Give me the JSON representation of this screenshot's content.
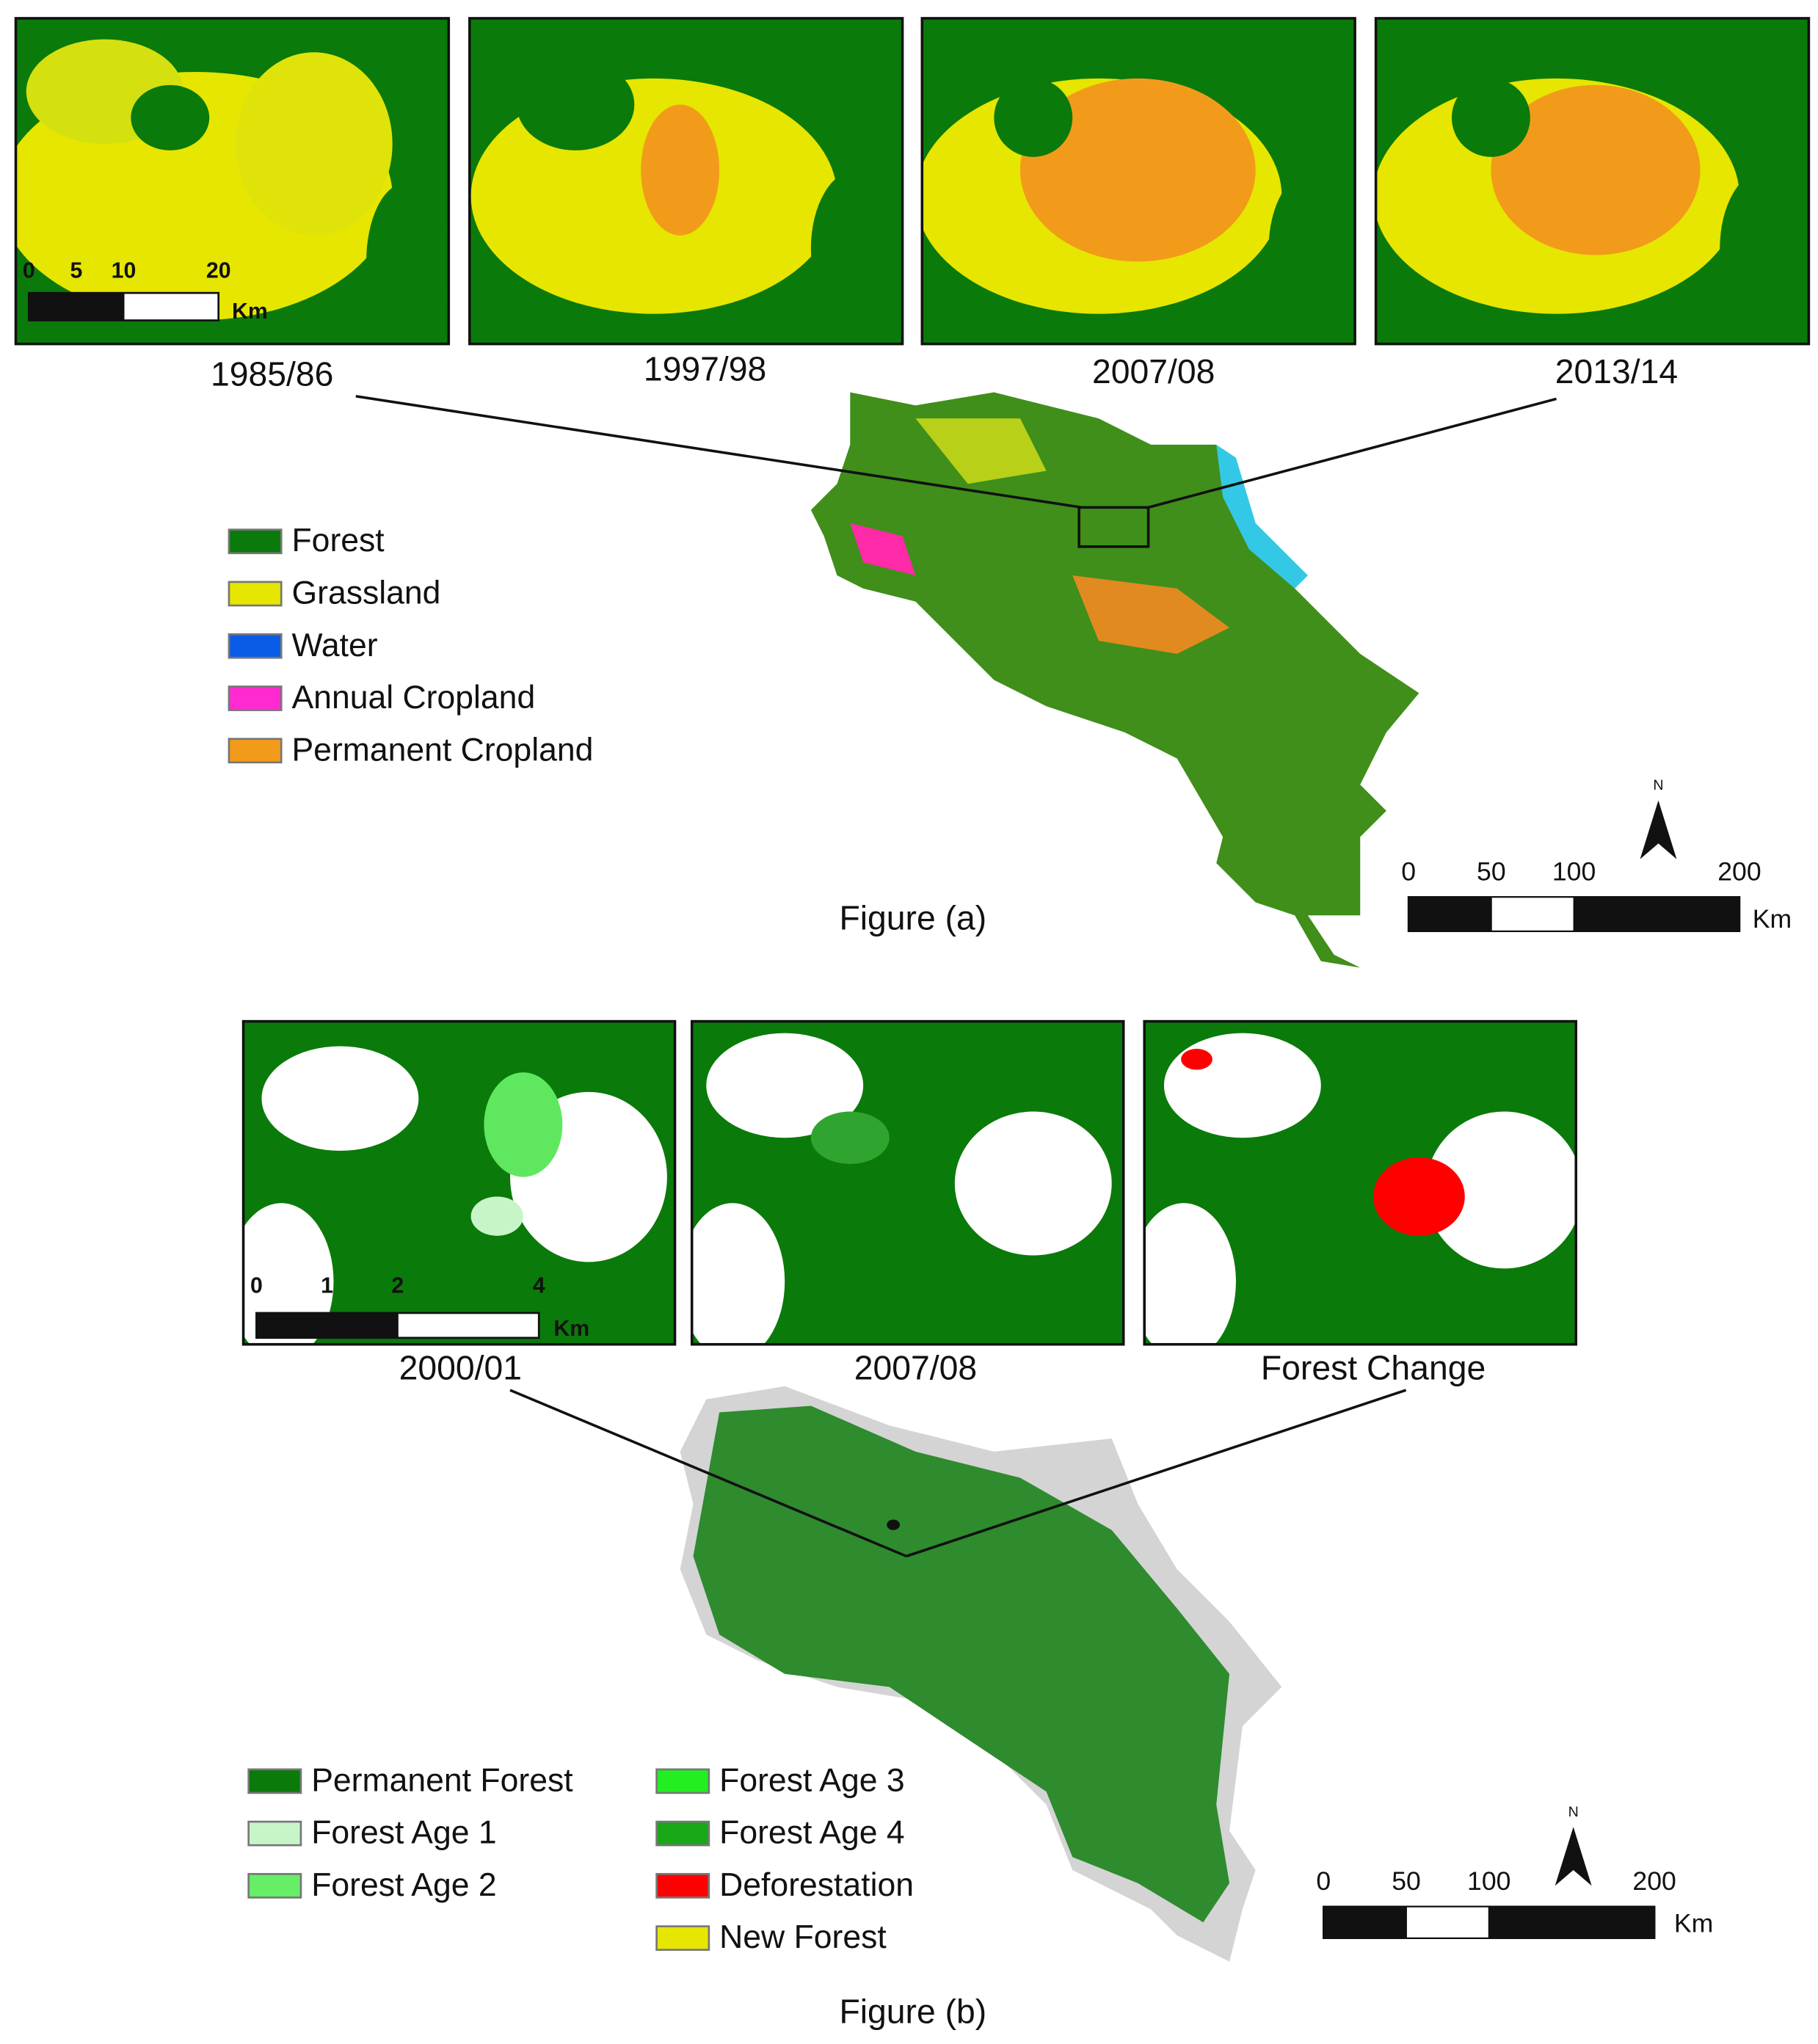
{
  "figure_a": {
    "panels": [
      "1985/86",
      "1997/98",
      "2007/08",
      "2013/14"
    ],
    "inset_scale": {
      "ticks": [
        0,
        5,
        10,
        20
      ],
      "unit": "Km"
    },
    "legend": [
      {
        "label": "Forest",
        "color": "#0a7a0a"
      },
      {
        "label": "Grassland",
        "color": "#e6e600"
      },
      {
        "label": "Water",
        "color": "#0a5ce6"
      },
      {
        "label": "Annual Cropland",
        "color": "#ff2ad0"
      },
      {
        "label": "Permanent Cropland",
        "color": "#f29b1a"
      }
    ],
    "scale": {
      "ticks": [
        0,
        50,
        100,
        200
      ],
      "unit": "Km"
    },
    "north": "N",
    "caption": "Figure (a)"
  },
  "figure_b": {
    "panels": [
      "2000/01",
      "2007/08",
      "Forest Change"
    ],
    "inset_scale": {
      "ticks": [
        0,
        1,
        2,
        4
      ],
      "unit": "Km"
    },
    "legend": [
      {
        "label": "Permanent Forest",
        "color": "#0a7a0a"
      },
      {
        "label": "Forest Age 1",
        "color": "#c8f5c8"
      },
      {
        "label": "Forest Age 2",
        "color": "#66ee66"
      },
      {
        "label": "Forest Age 3",
        "color": "#22ee22"
      },
      {
        "label": "Forest Age 4",
        "color": "#18a818"
      },
      {
        "label": "Deforestation",
        "color": "#ff0000"
      },
      {
        "label": "New Forest",
        "color": "#e6e600"
      }
    ],
    "scale": {
      "ticks": [
        0,
        50,
        100,
        200
      ],
      "unit": "Km"
    },
    "north": "N",
    "caption": "Figure (b)"
  }
}
